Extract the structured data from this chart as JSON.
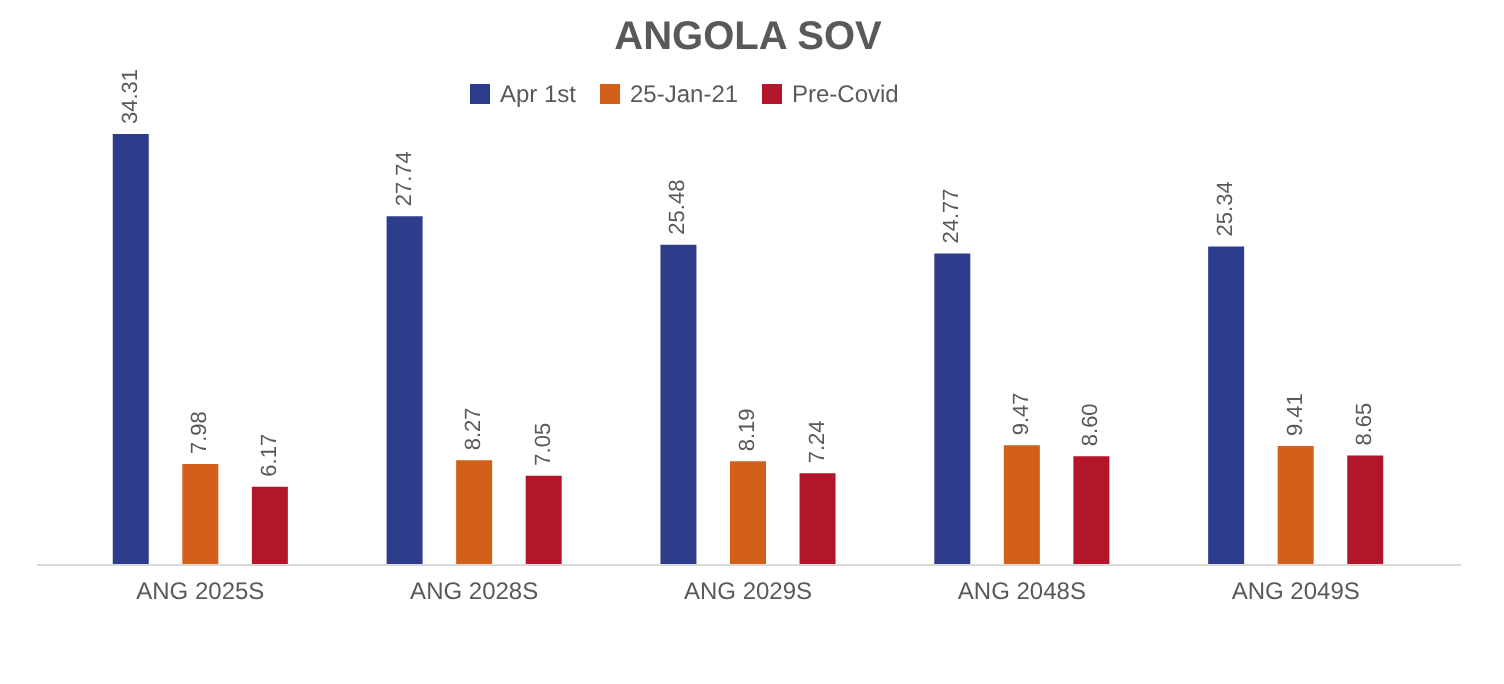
{
  "chart_data": {
    "type": "bar",
    "title": "ANGOLA SOV",
    "categories": [
      "ANG 2025S",
      "ANG 2028S",
      "ANG 2029S",
      "ANG 2048S",
      "ANG 2049S"
    ],
    "series": [
      {
        "name": "Apr 1st",
        "color": "#2e3c8c",
        "values": [
          34.31,
          27.74,
          25.48,
          24.77,
          25.34
        ]
      },
      {
        "name": "25-Jan-21",
        "color": "#d2601a",
        "values": [
          7.98,
          8.27,
          8.19,
          9.47,
          9.41
        ]
      },
      {
        "name": "Pre-Covid",
        "color": "#b3152b",
        "values": [
          6.17,
          7.05,
          7.24,
          8.6,
          8.65
        ],
        "value_labels": [
          "6.17",
          "7.05",
          "7.24",
          "8.60",
          "8.65"
        ]
      }
    ],
    "data_labels": true,
    "legend": "top",
    "grid": false,
    "tick_labels": "x"
  }
}
